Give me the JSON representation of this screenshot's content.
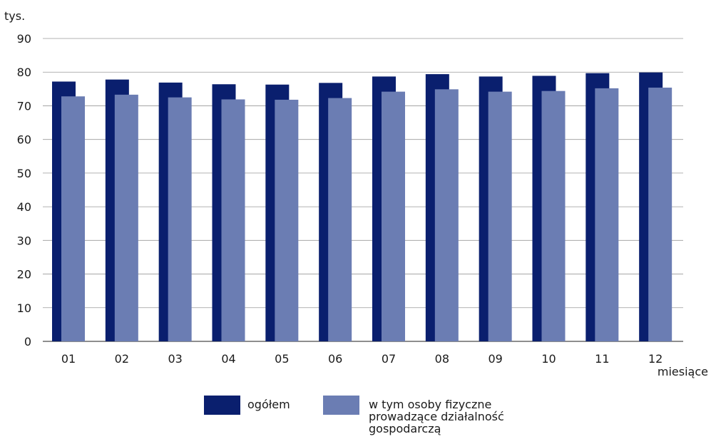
{
  "chart_data": {
    "type": "bar",
    "title": "",
    "ylabel": "tys.",
    "xlabel": "miesiące",
    "ylim": [
      0,
      90
    ],
    "yticks": [
      0,
      10,
      20,
      30,
      40,
      50,
      60,
      70,
      80,
      90
    ],
    "grid": true,
    "legend_position": "bottom",
    "categories": [
      "01",
      "02",
      "03",
      "04",
      "05",
      "06",
      "07",
      "08",
      "09",
      "10",
      "11",
      "12"
    ],
    "series": [
      {
        "name": "ogółem",
        "color": "#0a1f6e",
        "values": [
          77.2,
          77.8,
          76.9,
          76.4,
          76.3,
          76.8,
          78.7,
          79.4,
          78.7,
          78.9,
          79.7,
          79.9
        ]
      },
      {
        "name": "w tym osoby fizyczne prowadzące działalność gospodarczą",
        "color": "#6b7db3",
        "values": [
          72.8,
          73.3,
          72.5,
          71.9,
          71.8,
          72.3,
          74.2,
          74.9,
          74.2,
          74.4,
          75.2,
          75.4
        ]
      }
    ]
  },
  "legend": {
    "items": [
      {
        "label_lines": [
          "ogółem"
        ],
        "color": "#0a1f6e"
      },
      {
        "label_lines": [
          "w tym osoby fizyczne",
          "prowadzące działalność",
          "gospodarczą"
        ],
        "color": "#6b7db3"
      }
    ]
  }
}
